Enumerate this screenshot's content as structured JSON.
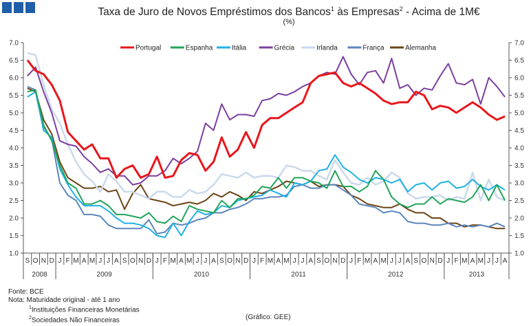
{
  "header": {
    "title_main": "Taxa de Juro de Novos Empréstimos  dos Bancos",
    "title_sup1": "1",
    "title_mid": " às Empresas",
    "title_sup2": "2",
    "title_end": " - Acima de 1M€",
    "subtitle": "(%)"
  },
  "footer": {
    "source": "Fonte: BCE",
    "note": "Nota: Maturidade original - até 1 ano",
    "note1_sup": "1",
    "note1": "Instituições Financeiras Monetárias",
    "note2_sup": "2",
    "note2": "Sociedades Não Financeiras",
    "credit": "(Gráfico: GEE)"
  },
  "chart_data": {
    "type": "line",
    "ylim": [
      1.0,
      7.0
    ],
    "yticks": [
      "1.0",
      "1.5",
      "2.0",
      "2.5",
      "3.0",
      "3.5",
      "4.0",
      "4.5",
      "5.0",
      "5.5",
      "6.0",
      "6.5",
      "7.0"
    ],
    "grid": false,
    "legend_position": "top",
    "months": [
      "S",
      "O",
      "N",
      "D",
      "J",
      "F",
      "M",
      "A",
      "M",
      "J",
      "J",
      "A",
      "S",
      "O",
      "N",
      "D",
      "J",
      "F",
      "M",
      "A",
      "M",
      "J",
      "J",
      "A",
      "S",
      "O",
      "N",
      "D",
      "J",
      "F",
      "M",
      "A",
      "M",
      "J",
      "J",
      "A",
      "S",
      "O",
      "N",
      "D",
      "J",
      "F",
      "M",
      "A",
      "M",
      "J",
      "J",
      "A",
      "S",
      "O",
      "N",
      "D",
      "J",
      "F",
      "M",
      "A",
      "M",
      "J",
      "J",
      "A"
    ],
    "years": [
      {
        "label": "2008",
        "months": 4
      },
      {
        "label": "2009",
        "months": 12
      },
      {
        "label": "2010",
        "months": 12
      },
      {
        "label": "2011",
        "months": 12
      },
      {
        "label": "2012",
        "months": 12
      },
      {
        "label": "2013",
        "months": 8
      }
    ],
    "series": [
      {
        "name": "Portugal",
        "color": "#e8161b",
        "width": 3,
        "values": [
          6.5,
          6.2,
          6.1,
          5.8,
          5.35,
          4.45,
          4.2,
          3.95,
          4.1,
          3.7,
          3.7,
          3.15,
          3.4,
          3.5,
          3.15,
          3.25,
          3.75,
          3.15,
          3.2,
          3.65,
          3.85,
          3.8,
          3.35,
          3.6,
          4.3,
          3.75,
          3.95,
          4.45,
          4.0,
          4.65,
          4.85,
          4.85,
          5.0,
          5.15,
          5.3,
          5.85,
          6.05,
          6.1,
          6.15,
          5.85,
          5.75,
          5.85,
          5.7,
          5.55,
          5.35,
          5.25,
          5.3,
          5.3,
          5.6,
          5.5,
          5.1,
          5.2,
          5.15,
          5.0,
          5.15,
          5.3,
          5.15,
          4.95,
          4.8,
          4.9
        ]
      },
      {
        "name": "Espanha",
        "color": "#21a45a",
        "width": 2,
        "values": [
          5.6,
          5.65,
          4.65,
          4.2,
          3.5,
          3.0,
          2.85,
          2.4,
          2.4,
          2.5,
          2.35,
          2.1,
          2.1,
          2.05,
          2.0,
          2.15,
          1.9,
          1.85,
          2.05,
          1.9,
          2.35,
          2.25,
          2.2,
          2.15,
          2.5,
          2.3,
          2.55,
          2.55,
          2.65,
          2.9,
          2.85,
          3.15,
          2.85,
          3.15,
          3.15,
          3.05,
          3.0,
          2.85,
          3.35,
          2.9,
          2.9,
          2.75,
          2.9,
          3.35,
          3.1,
          2.6,
          2.4,
          2.3,
          2.4,
          2.4,
          2.6,
          2.4,
          2.55,
          2.5,
          2.45,
          2.6,
          2.95,
          2.5,
          2.95,
          2.5
        ]
      },
      {
        "name": "Itália",
        "color": "#1fb1e6",
        "width": 2,
        "values": [
          5.45,
          5.6,
          4.5,
          4.3,
          3.4,
          2.95,
          2.6,
          2.35,
          2.35,
          2.35,
          2.2,
          2.0,
          1.85,
          1.85,
          1.8,
          1.7,
          1.5,
          1.45,
          1.85,
          1.5,
          1.9,
          2.2,
          2.1,
          2.15,
          2.35,
          2.3,
          2.5,
          2.55,
          2.6,
          2.65,
          2.8,
          2.7,
          2.6,
          3.0,
          2.95,
          3.05,
          3.35,
          3.4,
          3.8,
          3.45,
          3.3,
          3.1,
          3.0,
          3.15,
          3.1,
          3.0,
          3.1,
          2.75,
          2.95,
          3.0,
          2.8,
          3.0,
          3.05,
          2.85,
          2.9,
          3.1,
          2.9,
          2.8,
          2.95,
          2.8
        ]
      },
      {
        "name": "Grécia",
        "color": "#7b3f9e",
        "width": 2,
        "values": [
          6.05,
          6.3,
          5.6,
          5.0,
          4.2,
          4.1,
          4.05,
          3.75,
          3.55,
          3.3,
          3.4,
          3.2,
          3.2,
          2.95,
          3.0,
          3.2,
          3.2,
          3.35,
          3.7,
          3.55,
          3.7,
          3.9,
          4.7,
          4.5,
          5.25,
          4.8,
          4.95,
          4.95,
          4.9,
          5.35,
          5.4,
          5.55,
          5.5,
          5.6,
          5.75,
          5.85,
          6.05,
          6.15,
          6.1,
          6.6,
          6.1,
          5.8,
          6.15,
          6.2,
          5.85,
          6.55,
          5.7,
          5.8,
          5.5,
          5.7,
          5.65,
          6.05,
          6.4,
          5.85,
          5.8,
          5.95,
          5.25,
          6.0,
          5.75,
          5.45
        ]
      },
      {
        "name": "Irlanda",
        "color": "#cbd9ec",
        "width": 2.5,
        "values": [
          6.7,
          6.65,
          5.8,
          5.1,
          4.7,
          4.1,
          3.6,
          3.25,
          3.05,
          2.75,
          3.25,
          3.05,
          2.75,
          2.75,
          2.65,
          2.55,
          2.75,
          2.75,
          2.6,
          2.6,
          2.8,
          2.7,
          2.75,
          2.95,
          3.25,
          3.2,
          3.15,
          3.3,
          3.15,
          3.2,
          3.2,
          3.15,
          3.5,
          3.45,
          3.35,
          3.35,
          3.2,
          3.1,
          3.65,
          3.3,
          3.0,
          2.95,
          3.15,
          2.95,
          3.05,
          3.3,
          3.15,
          2.7,
          2.55,
          2.6,
          2.6,
          2.65,
          2.5,
          2.6,
          2.55,
          3.3,
          2.5,
          3.1,
          2.6,
          2.5
        ]
      },
      {
        "name": "França",
        "color": "#5b86bd",
        "width": 2,
        "values": [
          5.75,
          5.65,
          4.6,
          4.25,
          3.0,
          2.65,
          2.5,
          2.1,
          2.1,
          2.05,
          1.8,
          1.7,
          1.7,
          1.7,
          1.7,
          1.95,
          1.55,
          1.6,
          1.85,
          1.8,
          1.85,
          1.95,
          2.0,
          2.15,
          2.15,
          2.25,
          2.3,
          2.4,
          2.55,
          2.55,
          2.6,
          2.6,
          2.65,
          2.9,
          2.95,
          2.85,
          2.85,
          2.95,
          2.95,
          2.8,
          2.65,
          2.4,
          2.35,
          2.3,
          2.15,
          2.2,
          2.15,
          1.9,
          1.85,
          1.85,
          1.8,
          1.8,
          1.85,
          1.75,
          1.8,
          1.75,
          1.8,
          1.75,
          1.85,
          1.75
        ]
      },
      {
        "name": "Alemanha",
        "color": "#6b4416",
        "width": 2,
        "values": [
          5.7,
          5.6,
          4.8,
          4.4,
          3.6,
          3.15,
          3.0,
          2.85,
          2.85,
          2.9,
          2.75,
          2.8,
          2.25,
          2.7,
          2.95,
          2.55,
          2.5,
          2.45,
          2.35,
          2.4,
          2.45,
          2.4,
          2.5,
          2.7,
          2.6,
          2.75,
          2.65,
          2.5,
          2.75,
          2.7,
          2.8,
          2.9,
          3.05,
          3.0,
          2.95,
          3.05,
          2.9,
          2.95,
          2.95,
          2.9,
          2.65,
          2.55,
          2.4,
          2.35,
          2.3,
          2.3,
          2.4,
          2.25,
          2.15,
          2.15,
          2.0,
          2.0,
          1.85,
          1.85,
          1.75,
          1.8,
          1.8,
          1.75,
          1.7,
          1.7
        ]
      }
    ]
  }
}
